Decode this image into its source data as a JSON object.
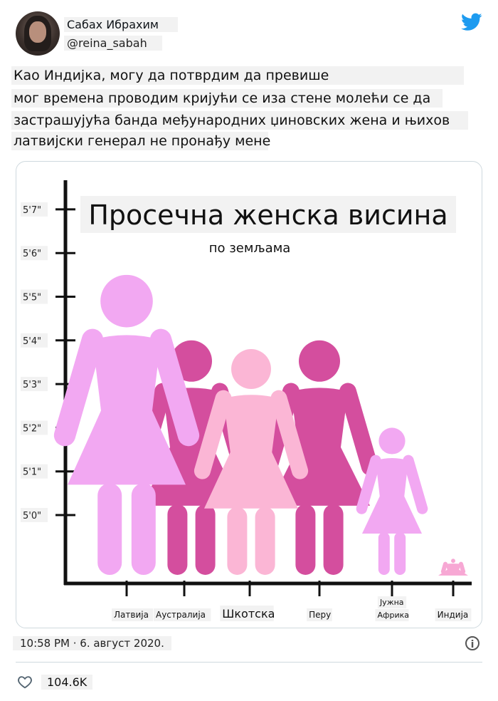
{
  "tweet": {
    "author_name": "Сабах Ибрахим",
    "handle": "@reina_sabah",
    "text_lines": [
      "Као Индијка, могу да потврдим да превише",
      "мог времена проводим кријући се иза стене молећи се да",
      "застрашујућа банда међународних џиновских жена и њихов",
      "латвијски генерал не пронађу мене"
    ],
    "timestamp": "10:58 PM · 6. август 2020.",
    "likes": "104.6K",
    "accent_color": "#1d9bf0"
  },
  "icons": {
    "logo": "twitter-bird-icon",
    "info": "info-icon",
    "like": "heart-icon"
  },
  "chart_data": {
    "type": "bar",
    "title": "Просечна женска висина",
    "subtitle": "по земљама",
    "y_ticks": [
      "5'0\"",
      "5'1\"",
      "5'2\"",
      "5'3\"",
      "5'4\"",
      "5'5\"",
      "5'6\"",
      "5'7\""
    ],
    "categories": [
      "Латвија",
      "Аустралија",
      "Шкотска",
      "Перу",
      "Јужна Африка",
      "Индија"
    ],
    "category_lines": [
      [
        "Латвија"
      ],
      [
        "Аустралија"
      ],
      [
        "Шкотска"
      ],
      [
        "Перу"
      ],
      [
        "Јужна",
        "Африка"
      ],
      [
        "Индија"
      ]
    ],
    "values_inches": [
      65.5,
      64.0,
      63.8,
      64.0,
      62.0,
      59.0
    ],
    "colors": [
      "#f2a8f2",
      "#d44e9e",
      "#fbb6d5",
      "#d44e9e",
      "#f2a8f2",
      "#f7a8d4"
    ]
  }
}
